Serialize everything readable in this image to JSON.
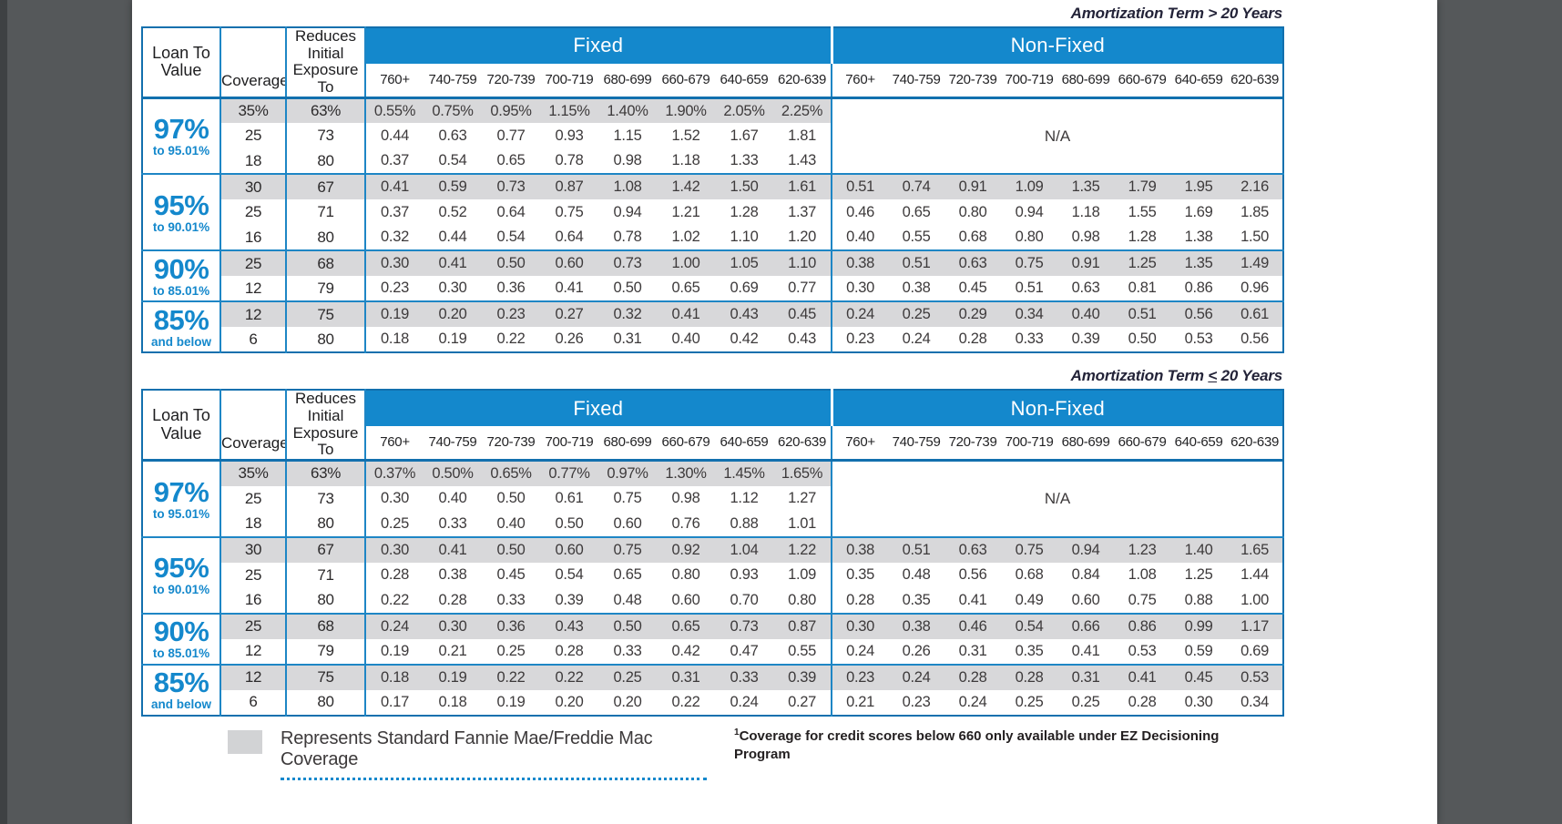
{
  "footer": {
    "legend_text": "Represents Standard Fannie Mae/Freddie Mac Coverage",
    "footnote_sup": "1",
    "footnote_text": "Coverage for credit scores below 660 only available under EZ Decisioning Program"
  },
  "colors": {
    "band_blue": "#1488cc",
    "border_blue": "#1270ae",
    "shaded_row_gray": "#d8d8da",
    "viewer_background": "#55585a"
  },
  "tables": [
    {
      "title": {
        "prefix": "Amortization Term ",
        "op": ">",
        "op_underline": false,
        "suffix": " 20 Years"
      },
      "header": {
        "loan_to_value": "Loan To Value",
        "coverage": "Coverage",
        "exposure": "Reduces Initial Exposure To",
        "fixed": "Fixed",
        "non_fixed": "Non-Fixed",
        "scores": [
          "760+",
          "740-759",
          "720-739",
          "700-719",
          "680-699",
          "660-679",
          "640-659",
          "620-639"
        ]
      },
      "groups": [
        {
          "ltv": "97%",
          "ltv_sub": "to 95.01%",
          "non_fixed_na": "N/A",
          "rows": [
            {
              "coverage": "35%",
              "exposure": "63%",
              "shaded": true,
              "fixed": [
                "0.55%",
                "0.75%",
                "0.95%",
                "1.15%",
                "1.40%",
                "1.90%",
                "2.05%",
                "2.25%"
              ],
              "non_fixed": null
            },
            {
              "coverage": "25",
              "exposure": "73",
              "shaded": false,
              "fixed": [
                "0.44",
                "0.63",
                "0.77",
                "0.93",
                "1.15",
                "1.52",
                "1.67",
                "1.81"
              ],
              "non_fixed": null
            },
            {
              "coverage": "18",
              "exposure": "80",
              "shaded": false,
              "fixed": [
                "0.37",
                "0.54",
                "0.65",
                "0.78",
                "0.98",
                "1.18",
                "1.33",
                "1.43"
              ],
              "non_fixed": null
            }
          ]
        },
        {
          "ltv": "95%",
          "ltv_sub": "to 90.01%",
          "non_fixed_na": null,
          "rows": [
            {
              "coverage": "30",
              "exposure": "67",
              "shaded": true,
              "fixed": [
                "0.41",
                "0.59",
                "0.73",
                "0.87",
                "1.08",
                "1.42",
                "1.50",
                "1.61"
              ],
              "non_fixed": [
                "0.51",
                "0.74",
                "0.91",
                "1.09",
                "1.35",
                "1.79",
                "1.95",
                "2.16"
              ]
            },
            {
              "coverage": "25",
              "exposure": "71",
              "shaded": false,
              "fixed": [
                "0.37",
                "0.52",
                "0.64",
                "0.75",
                "0.94",
                "1.21",
                "1.28",
                "1.37"
              ],
              "non_fixed": [
                "0.46",
                "0.65",
                "0.80",
                "0.94",
                "1.18",
                "1.55",
                "1.69",
                "1.85"
              ]
            },
            {
              "coverage": "16",
              "exposure": "80",
              "shaded": false,
              "fixed": [
                "0.32",
                "0.44",
                "0.54",
                "0.64",
                "0.78",
                "1.02",
                "1.10",
                "1.20"
              ],
              "non_fixed": [
                "0.40",
                "0.55",
                "0.68",
                "0.80",
                "0.98",
                "1.28",
                "1.38",
                "1.50"
              ]
            }
          ]
        },
        {
          "ltv": "90%",
          "ltv_sub": "to 85.01%",
          "non_fixed_na": null,
          "rows": [
            {
              "coverage": "25",
              "exposure": "68",
              "shaded": true,
              "fixed": [
                "0.30",
                "0.41",
                "0.50",
                "0.60",
                "0.73",
                "1.00",
                "1.05",
                "1.10"
              ],
              "non_fixed": [
                "0.38",
                "0.51",
                "0.63",
                "0.75",
                "0.91",
                "1.25",
                "1.35",
                "1.49"
              ]
            },
            {
              "coverage": "12",
              "exposure": "79",
              "shaded": false,
              "fixed": [
                "0.23",
                "0.30",
                "0.36",
                "0.41",
                "0.50",
                "0.65",
                "0.69",
                "0.77"
              ],
              "non_fixed": [
                "0.30",
                "0.38",
                "0.45",
                "0.51",
                "0.63",
                "0.81",
                "0.86",
                "0.96"
              ]
            }
          ]
        },
        {
          "ltv": "85%",
          "ltv_sub": "and below",
          "non_fixed_na": null,
          "rows": [
            {
              "coverage": "12",
              "exposure": "75",
              "shaded": true,
              "fixed": [
                "0.19",
                "0.20",
                "0.23",
                "0.27",
                "0.32",
                "0.41",
                "0.43",
                "0.45"
              ],
              "non_fixed": [
                "0.24",
                "0.25",
                "0.29",
                "0.34",
                "0.40",
                "0.51",
                "0.56",
                "0.61"
              ]
            },
            {
              "coverage": "6",
              "exposure": "80",
              "shaded": false,
              "fixed": [
                "0.18",
                "0.19",
                "0.22",
                "0.26",
                "0.31",
                "0.40",
                "0.42",
                "0.43"
              ],
              "non_fixed": [
                "0.23",
                "0.24",
                "0.28",
                "0.33",
                "0.39",
                "0.50",
                "0.53",
                "0.56"
              ]
            }
          ]
        }
      ]
    },
    {
      "title": {
        "prefix": "Amortization Term ",
        "op": "<",
        "op_underline": true,
        "suffix": " 20 Years"
      },
      "header": {
        "loan_to_value": "Loan To Value",
        "coverage": "Coverage",
        "exposure": "Reduces Initial Exposure To",
        "fixed": "Fixed",
        "non_fixed": "Non-Fixed",
        "scores": [
          "760+",
          "740-759",
          "720-739",
          "700-719",
          "680-699",
          "660-679",
          "640-659",
          "620-639"
        ]
      },
      "groups": [
        {
          "ltv": "97%",
          "ltv_sub": "to 95.01%",
          "non_fixed_na": "N/A",
          "rows": [
            {
              "coverage": "35%",
              "exposure": "63%",
              "shaded": true,
              "fixed": [
                "0.37%",
                "0.50%",
                "0.65%",
                "0.77%",
                "0.97%",
                "1.30%",
                "1.45%",
                "1.65%"
              ],
              "non_fixed": null
            },
            {
              "coverage": "25",
              "exposure": "73",
              "shaded": false,
              "fixed": [
                "0.30",
                "0.40",
                "0.50",
                "0.61",
                "0.75",
                "0.98",
                "1.12",
                "1.27"
              ],
              "non_fixed": null
            },
            {
              "coverage": "18",
              "exposure": "80",
              "shaded": false,
              "fixed": [
                "0.25",
                "0.33",
                "0.40",
                "0.50",
                "0.60",
                "0.76",
                "0.88",
                "1.01"
              ],
              "non_fixed": null
            }
          ]
        },
        {
          "ltv": "95%",
          "ltv_sub": "to 90.01%",
          "non_fixed_na": null,
          "rows": [
            {
              "coverage": "30",
              "exposure": "67",
              "shaded": true,
              "fixed": [
                "0.30",
                "0.41",
                "0.50",
                "0.60",
                "0.75",
                "0.92",
                "1.04",
                "1.22"
              ],
              "non_fixed": [
                "0.38",
                "0.51",
                "0.63",
                "0.75",
                "0.94",
                "1.23",
                "1.40",
                "1.65"
              ]
            },
            {
              "coverage": "25",
              "exposure": "71",
              "shaded": false,
              "fixed": [
                "0.28",
                "0.38",
                "0.45",
                "0.54",
                "0.65",
                "0.80",
                "0.93",
                "1.09"
              ],
              "non_fixed": [
                "0.35",
                "0.48",
                "0.56",
                "0.68",
                "0.84",
                "1.08",
                "1.25",
                "1.44"
              ]
            },
            {
              "coverage": "16",
              "exposure": "80",
              "shaded": false,
              "fixed": [
                "0.22",
                "0.28",
                "0.33",
                "0.39",
                "0.48",
                "0.60",
                "0.70",
                "0.80"
              ],
              "non_fixed": [
                "0.28",
                "0.35",
                "0.41",
                "0.49",
                "0.60",
                "0.75",
                "0.88",
                "1.00"
              ]
            }
          ]
        },
        {
          "ltv": "90%",
          "ltv_sub": "to 85.01%",
          "non_fixed_na": null,
          "rows": [
            {
              "coverage": "25",
              "exposure": "68",
              "shaded": true,
              "fixed": [
                "0.24",
                "0.30",
                "0.36",
                "0.43",
                "0.50",
                "0.65",
                "0.73",
                "0.87"
              ],
              "non_fixed": [
                "0.30",
                "0.38",
                "0.46",
                "0.54",
                "0.66",
                "0.86",
                "0.99",
                "1.17"
              ]
            },
            {
              "coverage": "12",
              "exposure": "79",
              "shaded": false,
              "fixed": [
                "0.19",
                "0.21",
                "0.25",
                "0.28",
                "0.33",
                "0.42",
                "0.47",
                "0.55"
              ],
              "non_fixed": [
                "0.24",
                "0.26",
                "0.31",
                "0.35",
                "0.41",
                "0.53",
                "0.59",
                "0.69"
              ]
            }
          ]
        },
        {
          "ltv": "85%",
          "ltv_sub": "and below",
          "non_fixed_na": null,
          "rows": [
            {
              "coverage": "12",
              "exposure": "75",
              "shaded": true,
              "fixed": [
                "0.18",
                "0.19",
                "0.22",
                "0.22",
                "0.25",
                "0.31",
                "0.33",
                "0.39"
              ],
              "non_fixed": [
                "0.23",
                "0.24",
                "0.28",
                "0.28",
                "0.31",
                "0.41",
                "0.45",
                "0.53"
              ]
            },
            {
              "coverage": "6",
              "exposure": "80",
              "shaded": false,
              "fixed": [
                "0.17",
                "0.18",
                "0.19",
                "0.20",
                "0.20",
                "0.22",
                "0.24",
                "0.27"
              ],
              "non_fixed": [
                "0.21",
                "0.23",
                "0.24",
                "0.25",
                "0.25",
                "0.28",
                "0.30",
                "0.34"
              ]
            }
          ]
        }
      ]
    }
  ]
}
